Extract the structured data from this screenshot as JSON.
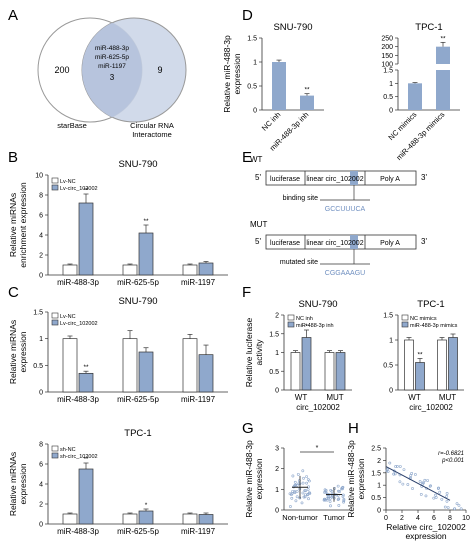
{
  "colors": {
    "nc": "#ffffff",
    "treat": "#8fa8cc",
    "circle": "#c9d3e6",
    "stroke": "#333333",
    "seq": "#6f8fc0"
  },
  "panels": {
    "A": "A",
    "B": "B",
    "C": "C",
    "D": "D",
    "E": "E",
    "F": "F",
    "G": "G",
    "H": "H"
  },
  "panelA": {
    "left_only": "200",
    "right_only": "9",
    "overlap_mirnas": [
      "miR-488-3p",
      "miR-625-5p",
      "miR-1197"
    ],
    "overlap_count": "3",
    "left_label": "starBase",
    "right_label": [
      "Circular RNA",
      "Interactome"
    ]
  },
  "panelE": {
    "wt": "WT",
    "mut": "MUT",
    "luc": "luciferase",
    "linear": "linear circ_102002",
    "polya": "Poly A",
    "five": "5'",
    "three": "3'",
    "binding_site": "binding site",
    "wt_seq": "GCCUUUCA",
    "mutated_site": "mutated site",
    "mut_seq": "CGGAAAGU"
  },
  "chart_data": [
    {
      "id": "B",
      "type": "bar",
      "title": "SNU-790",
      "ylabel": [
        "Relative miRNAs",
        "enrichment expression"
      ],
      "categories": [
        "miR-488-3p",
        "miR-625-5p",
        "miR-1197"
      ],
      "series": [
        {
          "name": "Lv-NC",
          "values": [
            1,
            1,
            1
          ]
        },
        {
          "name": "Lv-circ_102002",
          "values": [
            7.2,
            4.2,
            1.2
          ]
        }
      ],
      "errors": [
        [
          0.1,
          0.1,
          0.1
        ],
        [
          0.9,
          0.8,
          0.15
        ]
      ],
      "ylim": [
        0,
        10
      ],
      "yticks": [
        0,
        2,
        4,
        6,
        8,
        10
      ],
      "annotations": [
        "**",
        "**",
        ""
      ]
    },
    {
      "id": "C1",
      "type": "bar",
      "title": "SNU-790",
      "ylabel": [
        "Relative miRNAs",
        "expression"
      ],
      "categories": [
        "miR-488-3p",
        "miR-625-5p",
        "miR-1197"
      ],
      "series": [
        {
          "name": "Lv-NC",
          "values": [
            1,
            1,
            1
          ]
        },
        {
          "name": "Lv-circ_102002",
          "values": [
            0.35,
            0.75,
            0.7
          ]
        }
      ],
      "errors": [
        [
          0.05,
          0.15,
          0.08
        ],
        [
          0.04,
          0.08,
          0.18
        ]
      ],
      "ylim": [
        0,
        1.5
      ],
      "yticks": [
        0,
        0.5,
        1.0,
        1.5
      ],
      "annotations": [
        "**",
        "",
        ""
      ]
    },
    {
      "id": "C2",
      "type": "bar",
      "title": "TPC-1",
      "ylabel": [
        "Relative miRNAs",
        "expression"
      ],
      "categories": [
        "miR-488-3p",
        "miR-625-5p",
        "miR-1197"
      ],
      "series": [
        {
          "name": "sh-NC",
          "values": [
            1,
            1,
            1
          ]
        },
        {
          "name": "sh-circ_102002",
          "values": [
            5.5,
            1.3,
            0.95
          ]
        }
      ],
      "errors": [
        [
          0.1,
          0.1,
          0.1
        ],
        [
          0.6,
          0.2,
          0.15
        ]
      ],
      "ylim": [
        0,
        8
      ],
      "yticks": [
        0,
        2,
        4,
        6,
        8
      ],
      "annotations": [
        "**",
        "*",
        ""
      ]
    },
    {
      "id": "D1",
      "type": "bar",
      "title": "SNU-790",
      "ylabel": [
        "Relative miR-488-3p",
        "expression"
      ],
      "categories": [
        "NC inh",
        "miR-488-3p inh"
      ],
      "values": [
        1.0,
        0.3
      ],
      "errors": [
        0.04,
        0.04
      ],
      "ylim": [
        0,
        1.5
      ],
      "yticks": [
        0,
        0.5,
        1.0,
        1.5
      ],
      "annotations": [
        "",
        "**"
      ]
    },
    {
      "id": "D2",
      "type": "bar",
      "title": "TPC-1",
      "categories": [
        "NC mimics",
        "miR-488-3p mimics"
      ],
      "values": [
        1.0,
        200
      ],
      "errors": [
        0.03,
        25
      ],
      "ylim": [
        0,
        250
      ],
      "yticks_low": [
        0,
        0.5,
        1.0,
        1.5
      ],
      "yticks_high": [
        100,
        150,
        200,
        250
      ],
      "annotations": [
        "",
        "**"
      ]
    },
    {
      "id": "F1",
      "type": "bar",
      "title": "SNU-790",
      "ylabel": [
        "Relative luciferase",
        "activity"
      ],
      "categories": [
        "WT",
        "MUT"
      ],
      "xgroup_label": "circ_102002",
      "series": [
        {
          "name": "NC inh",
          "values": [
            1.0,
            1.0
          ]
        },
        {
          "name": "miR-488-3p inh",
          "values": [
            1.4,
            1.0
          ]
        }
      ],
      "errors": [
        [
          0.05,
          0.05
        ],
        [
          0.2,
          0.05
        ]
      ],
      "ylim": [
        0,
        2.0
      ],
      "yticks": [
        0,
        0.5,
        1.0,
        1.5,
        2.0
      ],
      "annotations": [
        "*",
        ""
      ]
    },
    {
      "id": "F2",
      "type": "bar",
      "title": "TPC-1",
      "categories": [
        "WT",
        "MUT"
      ],
      "xgroup_label": "circ_102002",
      "series": [
        {
          "name": "NC mimics",
          "values": [
            1.0,
            1.0
          ]
        },
        {
          "name": "miR-488-3p mimics",
          "values": [
            0.55,
            1.05
          ]
        }
      ],
      "errors": [
        [
          0.05,
          0.05
        ],
        [
          0.08,
          0.07
        ]
      ],
      "ylim": [
        0,
        1.5
      ],
      "yticks": [
        0,
        0.5,
        1.0,
        1.5
      ],
      "annotations": [
        "**",
        ""
      ]
    },
    {
      "id": "G",
      "type": "scatter",
      "ylabel": [
        "Relative miR-488-3p",
        "expression"
      ],
      "categories": [
        "Non-tumor",
        "Tumor"
      ],
      "means": [
        1.1,
        0.75
      ],
      "sds": [
        0.55,
        0.35
      ],
      "ylim": [
        0,
        3
      ],
      "yticks": [
        0,
        1,
        2,
        3
      ],
      "annotations": [
        "*"
      ]
    },
    {
      "id": "H",
      "type": "scatter",
      "xlabel": [
        "Relative circ_102002",
        "expression"
      ],
      "ylabel": [
        "Relative miR-488-3p",
        "expression"
      ],
      "xlim": [
        0,
        10
      ],
      "xticks": [
        0,
        2,
        4,
        6,
        8,
        10
      ],
      "ylim": [
        0,
        2.5
      ],
      "yticks": [
        0,
        0.5,
        1.0,
        1.5,
        2.0,
        2.5
      ],
      "fit": {
        "slope": -0.17,
        "intercept": 1.75
      },
      "annotation_r": "r=-0.6821",
      "annotation_p": "p<0.001"
    }
  ]
}
